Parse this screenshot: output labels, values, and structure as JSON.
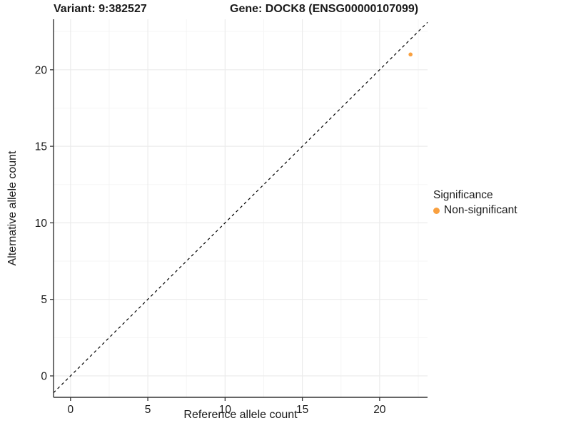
{
  "header": {
    "title_left": "Variant: 9:382527",
    "title_right": "Gene: DOCK8 (ENSG00000107099)"
  },
  "chart_data": {
    "type": "scatter",
    "title": "Variant: 9:382527   Gene: DOCK8 (ENSG00000107099)",
    "xlabel": "Reference allele count",
    "ylabel": "Alternative allele count",
    "xlim": [
      -1.1,
      23.1
    ],
    "ylim": [
      -1.4,
      23.3
    ],
    "xticks": [
      0,
      5,
      10,
      15,
      20
    ],
    "yticks": [
      0,
      5,
      10,
      15,
      20
    ],
    "minor_tick_step": 2.5,
    "grid": "major+minor",
    "reference_line": {
      "type": "identity",
      "slope": 1,
      "intercept": 0,
      "style": "dashed",
      "color": "#000000"
    },
    "series": [
      {
        "name": "Non-significant",
        "color": "#F9A03F",
        "points": [
          {
            "x": 22,
            "y": 21
          }
        ]
      }
    ],
    "legend": {
      "title": "Significance",
      "position": "right",
      "entries": [
        {
          "label": "Non-significant",
          "color": "#F9A03F"
        }
      ]
    },
    "colors": {
      "background": "#FFFFFF",
      "grid_major": "#EBEBEB",
      "grid_minor": "#F5F5F5",
      "axis_line": "#333333",
      "tick": "#333333",
      "text": "#1A1A1A",
      "point": "#F9A03F"
    }
  }
}
